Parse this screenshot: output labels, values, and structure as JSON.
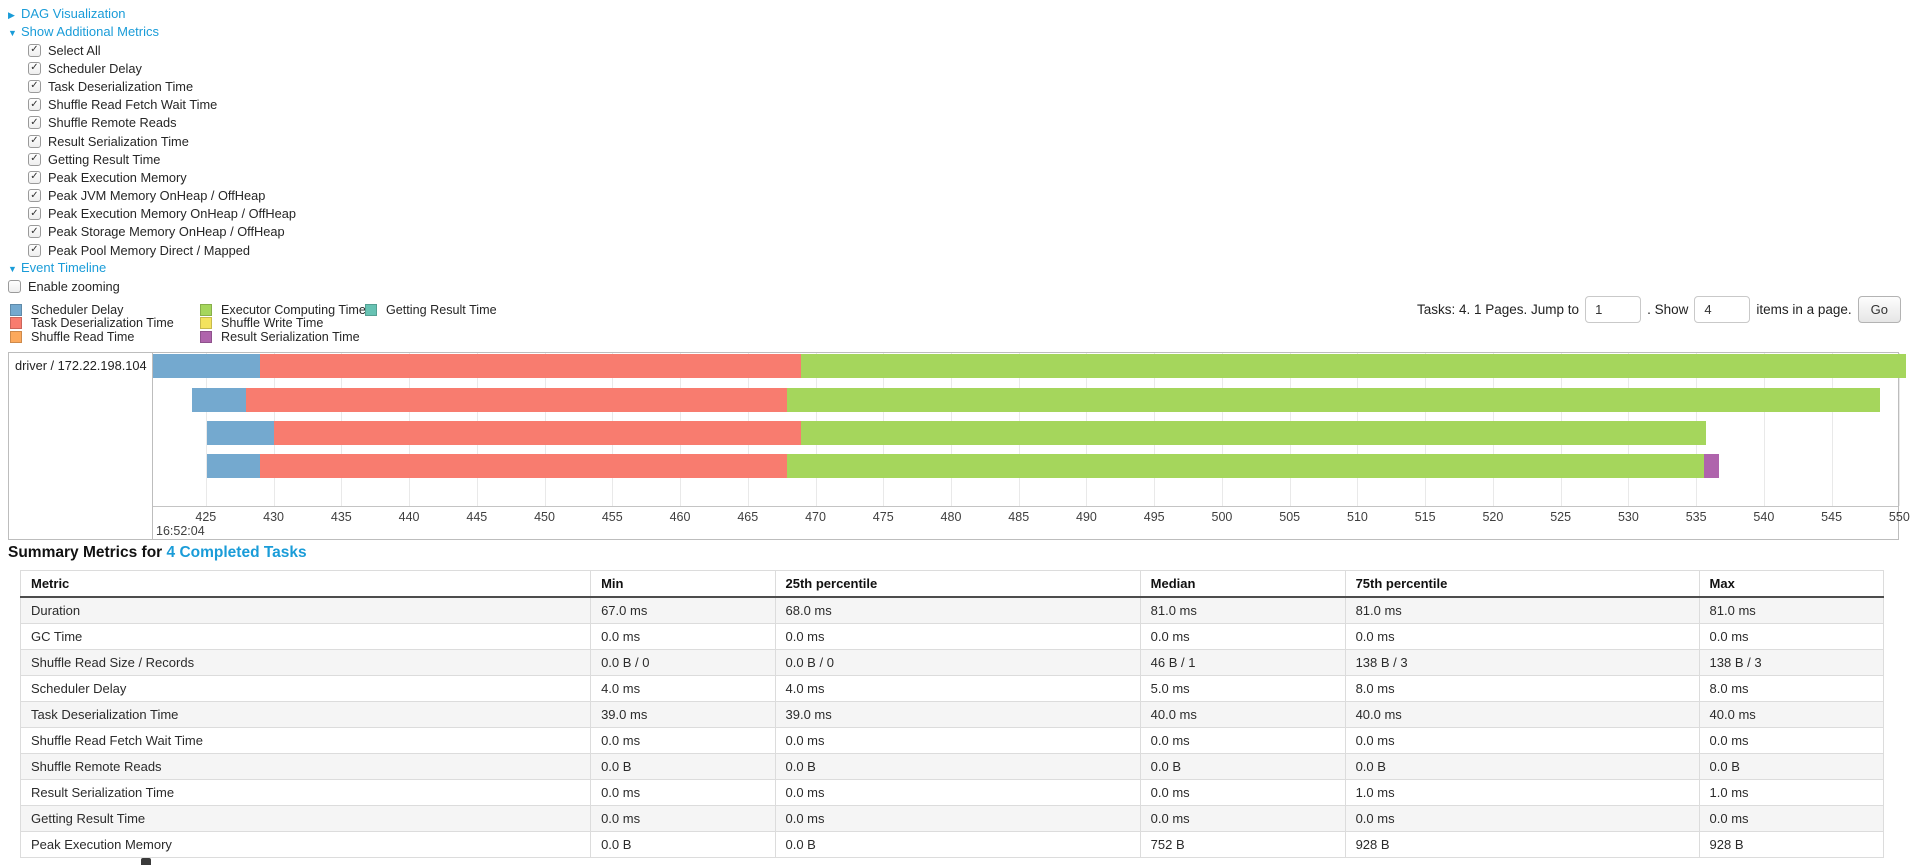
{
  "colors": {
    "link": "#1a9cd8"
  },
  "accordions": {
    "dag": {
      "label": "DAG Visualization",
      "arrow": "collapsed"
    },
    "metrics": {
      "label": "Show Additional Metrics",
      "arrow": "expanded"
    },
    "timeline": {
      "label": "Event Timeline",
      "arrow": "expanded"
    }
  },
  "metric_checkboxes": [
    "Select All",
    "Scheduler Delay",
    "Task Deserialization Time",
    "Shuffle Read Fetch Wait Time",
    "Shuffle Remote Reads",
    "Result Serialization Time",
    "Getting Result Time",
    "Peak Execution Memory",
    "Peak JVM Memory OnHeap / OffHeap",
    "Peak Execution Memory OnHeap / OffHeap",
    "Peak Storage Memory OnHeap / OffHeap",
    "Peak Pool Memory Direct / Mapped"
  ],
  "enable_zooming_label": "Enable zooming",
  "legend": {
    "columns": [
      [
        {
          "label": "Scheduler Delay",
          "color": "scheduler_delay"
        },
        {
          "label": "Task Deserialization Time",
          "color": "task_deserialization"
        },
        {
          "label": "Shuffle Read Time",
          "color": "shuffle_read"
        }
      ],
      [
        {
          "label": "Executor Computing Time",
          "color": "executor_computing"
        },
        {
          "label": "Shuffle Write Time",
          "color": "shuffle_write"
        },
        {
          "label": "Result Serialization Time",
          "color": "result_serialization"
        }
      ],
      [
        {
          "label": "Getting Result Time",
          "color": "getting_result"
        }
      ]
    ]
  },
  "pagination": {
    "prefix": "Tasks: 4. 1 Pages. Jump to",
    "jump_value": "1",
    "between": ". Show",
    "show_value": "4",
    "suffix": "items in a page.",
    "go_label": "Go"
  },
  "timeline": {
    "executor_label": "driver / 172.22.198.104",
    "axis": {
      "min": 421.1,
      "max": 549.9,
      "tick_min": 425,
      "tick_max": 550,
      "tick_step": 5,
      "major_label": "16:52:04"
    },
    "colors": {
      "scheduler_delay": "#74A9CF",
      "task_deserialization": "#F87C6F",
      "shuffle_read": "#FCA95C",
      "executor_computing": "#A5D65C",
      "shuffle_write": "#F3E35E",
      "result_serialization": "#AF64AC",
      "getting_result": "#67C2B3"
    },
    "row_tops": [
      1,
      35,
      68,
      101
    ],
    "tasks": [
      {
        "segments": [
          [
            "scheduler_delay",
            421.1,
            429.0
          ],
          [
            "task_deserialization",
            429.0,
            468.9
          ],
          [
            "executor_computing",
            468.9,
            550.5
          ]
        ]
      },
      {
        "segments": [
          [
            "scheduler_delay",
            424.0,
            428.0
          ],
          [
            "task_deserialization",
            428.0,
            467.9
          ],
          [
            "executor_computing",
            467.9,
            548.6
          ]
        ]
      },
      {
        "segments": [
          [
            "scheduler_delay",
            425.1,
            430.0
          ],
          [
            "task_deserialization",
            430.0,
            468.9
          ],
          [
            "executor_computing",
            468.9,
            535.7
          ]
        ]
      },
      {
        "segments": [
          [
            "scheduler_delay",
            425.1,
            429.0
          ],
          [
            "task_deserialization",
            429.0,
            467.9
          ],
          [
            "executor_computing",
            467.9,
            535.6
          ],
          [
            "result_serialization",
            535.6,
            536.7
          ]
        ]
      }
    ]
  },
  "summary": {
    "title_prefix": "Summary Metrics for",
    "title_link": "4 Completed Tasks",
    "columns": [
      "Metric",
      "Min",
      "25th percentile",
      "Median",
      "75th percentile",
      "Max"
    ],
    "column_widths_pct": [
      30.6,
      9.9,
      19.6,
      11.0,
      19.0,
      9.9
    ],
    "rows": [
      [
        "Duration",
        "67.0 ms",
        "68.0 ms",
        "81.0 ms",
        "81.0 ms",
        "81.0 ms"
      ],
      [
        "GC Time",
        "0.0 ms",
        "0.0 ms",
        "0.0 ms",
        "0.0 ms",
        "0.0 ms"
      ],
      [
        "Shuffle Read Size / Records",
        "0.0 B / 0",
        "0.0 B / 0",
        "46 B / 1",
        "138 B / 3",
        "138 B / 3"
      ],
      [
        "Scheduler Delay",
        "4.0 ms",
        "4.0 ms",
        "5.0 ms",
        "8.0 ms",
        "8.0 ms"
      ],
      [
        "Task Deserialization Time",
        "39.0 ms",
        "39.0 ms",
        "40.0 ms",
        "40.0 ms",
        "40.0 ms"
      ],
      [
        "Shuffle Read Fetch Wait Time",
        "0.0 ms",
        "0.0 ms",
        "0.0 ms",
        "0.0 ms",
        "0.0 ms"
      ],
      [
        "Shuffle Remote Reads",
        "0.0 B",
        "0.0 B",
        "0.0 B",
        "0.0 B",
        "0.0 B"
      ],
      [
        "Result Serialization Time",
        "0.0 ms",
        "0.0 ms",
        "0.0 ms",
        "1.0 ms",
        "1.0 ms"
      ],
      [
        "Getting Result Time",
        "0.0 ms",
        "0.0 ms",
        "0.0 ms",
        "0.0 ms",
        "0.0 ms"
      ],
      [
        "Peak Execution Memory",
        "0.0 B",
        "0.0 B",
        "752 B",
        "928 B",
        "928 B"
      ]
    ]
  }
}
